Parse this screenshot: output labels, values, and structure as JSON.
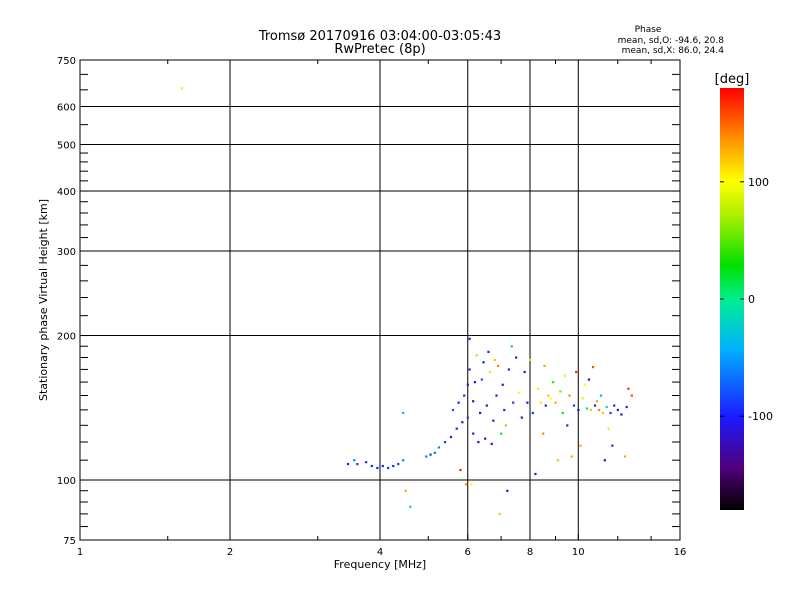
{
  "chart_data": {
    "type": "scatter",
    "title": "Tromsø 20170916 03:04:00-03:05:43",
    "subtitle": "RwPretec (8p)",
    "xlabel": "Frequency [MHz]",
    "ylabel": "Stationary phase Virtual Height [km]",
    "x_scale": "log",
    "y_scale": "log",
    "xlim": [
      1,
      16
    ],
    "ylim": [
      75,
      750
    ],
    "x_ticks": [
      1,
      2,
      4,
      6,
      8,
      10,
      16
    ],
    "x_tick_labels": [
      "1",
      "2",
      "4",
      "6",
      "8",
      "10",
      "16"
    ],
    "y_ticks": [
      75,
      100,
      200,
      300,
      400,
      500,
      600,
      750
    ],
    "y_tick_labels": [
      "75",
      "100",
      "200",
      "300",
      "400",
      "500",
      "600",
      "750"
    ],
    "grid": true,
    "stats": {
      "heading": "Phase",
      "line_o": "mean, sd,O: -94.6, 20.8",
      "line_x": "mean, sd,X:  86.0, 24.4"
    },
    "colorbar": {
      "label": "[deg]",
      "range": [
        -180,
        180
      ],
      "tick_values": [
        100,
        0,
        -100
      ],
      "tick_labels": [
        "100",
        "0",
        "-100"
      ]
    },
    "series": [
      {
        "marker_color_by": "phase",
        "points": [
          {
            "x": 1.6,
            "y": 655,
            "phase": 110
          },
          {
            "x": 3.45,
            "y": 108,
            "phase": -100
          },
          {
            "x": 3.55,
            "y": 110,
            "phase": -60
          },
          {
            "x": 3.6,
            "y": 108,
            "phase": -90
          },
          {
            "x": 3.75,
            "y": 109,
            "phase": -95
          },
          {
            "x": 3.85,
            "y": 107,
            "phase": -100
          },
          {
            "x": 3.95,
            "y": 106,
            "phase": -105
          },
          {
            "x": 4.05,
            "y": 107,
            "phase": -100
          },
          {
            "x": 4.15,
            "y": 106,
            "phase": -95
          },
          {
            "x": 4.25,
            "y": 107,
            "phase": -100
          },
          {
            "x": 4.35,
            "y": 108,
            "phase": -90
          },
          {
            "x": 4.45,
            "y": 110,
            "phase": -60
          },
          {
            "x": 4.45,
            "y": 138,
            "phase": -40
          },
          {
            "x": 4.5,
            "y": 95,
            "phase": 130
          },
          {
            "x": 4.6,
            "y": 88,
            "phase": -20
          },
          {
            "x": 4.95,
            "y": 112,
            "phase": -60
          },
          {
            "x": 5.05,
            "y": 113,
            "phase": -90
          },
          {
            "x": 5.15,
            "y": 114,
            "phase": -70
          },
          {
            "x": 5.25,
            "y": 117,
            "phase": -60
          },
          {
            "x": 5.4,
            "y": 120,
            "phase": -90
          },
          {
            "x": 5.55,
            "y": 123,
            "phase": -100
          },
          {
            "x": 5.6,
            "y": 140,
            "phase": -80
          },
          {
            "x": 5.7,
            "y": 128,
            "phase": -100
          },
          {
            "x": 5.75,
            "y": 145,
            "phase": -105
          },
          {
            "x": 5.8,
            "y": 105,
            "phase": 170
          },
          {
            "x": 5.85,
            "y": 132,
            "phase": -110
          },
          {
            "x": 5.9,
            "y": 150,
            "phase": -100
          },
          {
            "x": 5.95,
            "y": 98,
            "phase": 140
          },
          {
            "x": 6.0,
            "y": 135,
            "phase": -90
          },
          {
            "x": 6.0,
            "y": 158,
            "phase": -110
          },
          {
            "x": 6.05,
            "y": 170,
            "phase": -100
          },
          {
            "x": 6.05,
            "y": 197,
            "phase": -110
          },
          {
            "x": 6.1,
            "y": 98,
            "phase": 100
          },
          {
            "x": 6.15,
            "y": 125,
            "phase": -105
          },
          {
            "x": 6.15,
            "y": 146,
            "phase": -120
          },
          {
            "x": 6.2,
            "y": 160,
            "phase": -110
          },
          {
            "x": 6.25,
            "y": 182,
            "phase": 120
          },
          {
            "x": 6.3,
            "y": 120,
            "phase": -120
          },
          {
            "x": 6.35,
            "y": 138,
            "phase": -110
          },
          {
            "x": 6.4,
            "y": 162,
            "phase": -80
          },
          {
            "x": 6.45,
            "y": 176,
            "phase": -120
          },
          {
            "x": 6.5,
            "y": 122,
            "phase": -120
          },
          {
            "x": 6.55,
            "y": 143,
            "phase": -110
          },
          {
            "x": 6.6,
            "y": 185,
            "phase": -100
          },
          {
            "x": 6.65,
            "y": 168,
            "phase": 80
          },
          {
            "x": 6.7,
            "y": 119,
            "phase": -110
          },
          {
            "x": 6.75,
            "y": 133,
            "phase": -100
          },
          {
            "x": 6.8,
            "y": 178,
            "phase": 120
          },
          {
            "x": 6.85,
            "y": 150,
            "phase": -110
          },
          {
            "x": 6.9,
            "y": 173,
            "phase": 140
          },
          {
            "x": 6.95,
            "y": 85,
            "phase": 120
          },
          {
            "x": 7.0,
            "y": 125,
            "phase": 20
          },
          {
            "x": 7.05,
            "y": 158,
            "phase": -110
          },
          {
            "x": 7.1,
            "y": 140,
            "phase": -100
          },
          {
            "x": 7.15,
            "y": 130,
            "phase": 60
          },
          {
            "x": 7.2,
            "y": 95,
            "phase": -110
          },
          {
            "x": 7.25,
            "y": 170,
            "phase": -100
          },
          {
            "x": 7.35,
            "y": 190,
            "phase": -40
          },
          {
            "x": 7.4,
            "y": 145,
            "phase": -90
          },
          {
            "x": 7.5,
            "y": 180,
            "phase": -110
          },
          {
            "x": 7.6,
            "y": 152,
            "phase": 100
          },
          {
            "x": 7.7,
            "y": 135,
            "phase": -120
          },
          {
            "x": 7.8,
            "y": 168,
            "phase": -130
          },
          {
            "x": 7.9,
            "y": 145,
            "phase": -110
          },
          {
            "x": 8.0,
            "y": 178,
            "phase": 110
          },
          {
            "x": 8.1,
            "y": 138,
            "phase": -90
          },
          {
            "x": 8.2,
            "y": 103,
            "phase": -120
          },
          {
            "x": 8.3,
            "y": 155,
            "phase": 90
          },
          {
            "x": 8.4,
            "y": 145,
            "phase": 110
          },
          {
            "x": 8.5,
            "y": 125,
            "phase": 140
          },
          {
            "x": 8.55,
            "y": 173,
            "phase": 130
          },
          {
            "x": 8.6,
            "y": 143,
            "phase": -110
          },
          {
            "x": 8.7,
            "y": 150,
            "phase": 120
          },
          {
            "x": 8.8,
            "y": 148,
            "phase": 100
          },
          {
            "x": 8.9,
            "y": 160,
            "phase": 40
          },
          {
            "x": 9.0,
            "y": 145,
            "phase": 130
          },
          {
            "x": 9.1,
            "y": 110,
            "phase": 120
          },
          {
            "x": 9.2,
            "y": 153,
            "phase": 60
          },
          {
            "x": 9.3,
            "y": 138,
            "phase": 20
          },
          {
            "x": 9.4,
            "y": 165,
            "phase": 90
          },
          {
            "x": 9.5,
            "y": 130,
            "phase": -100
          },
          {
            "x": 9.6,
            "y": 150,
            "phase": 140
          },
          {
            "x": 9.7,
            "y": 112,
            "phase": 130
          },
          {
            "x": 9.8,
            "y": 143,
            "phase": -90
          },
          {
            "x": 9.9,
            "y": 168,
            "phase": 170
          },
          {
            "x": 10.0,
            "y": 140,
            "phase": -120
          },
          {
            "x": 10.1,
            "y": 118,
            "phase": 130
          },
          {
            "x": 10.2,
            "y": 148,
            "phase": 110
          },
          {
            "x": 10.3,
            "y": 158,
            "phase": 100
          },
          {
            "x": 10.4,
            "y": 141,
            "phase": -20
          },
          {
            "x": 10.5,
            "y": 162,
            "phase": -110
          },
          {
            "x": 10.6,
            "y": 140,
            "phase": 120
          },
          {
            "x": 10.7,
            "y": 172,
            "phase": 160
          },
          {
            "x": 10.8,
            "y": 143,
            "phase": -110
          },
          {
            "x": 10.9,
            "y": 146,
            "phase": 130
          },
          {
            "x": 11.0,
            "y": 140,
            "phase": 140
          },
          {
            "x": 11.1,
            "y": 150,
            "phase": -40
          },
          {
            "x": 11.2,
            "y": 138,
            "phase": 120
          },
          {
            "x": 11.3,
            "y": 110,
            "phase": -120
          },
          {
            "x": 11.4,
            "y": 142,
            "phase": -20
          },
          {
            "x": 11.5,
            "y": 128,
            "phase": 110
          },
          {
            "x": 11.6,
            "y": 138,
            "phase": -90
          },
          {
            "x": 11.7,
            "y": 118,
            "phase": -100
          },
          {
            "x": 11.8,
            "y": 143,
            "phase": -100
          },
          {
            "x": 12.0,
            "y": 140,
            "phase": -110
          },
          {
            "x": 12.2,
            "y": 137,
            "phase": -120
          },
          {
            "x": 12.4,
            "y": 112,
            "phase": 130
          },
          {
            "x": 12.5,
            "y": 142,
            "phase": -100
          },
          {
            "x": 12.6,
            "y": 155,
            "phase": 170
          },
          {
            "x": 12.8,
            "y": 150,
            "phase": 160
          }
        ]
      }
    ]
  }
}
